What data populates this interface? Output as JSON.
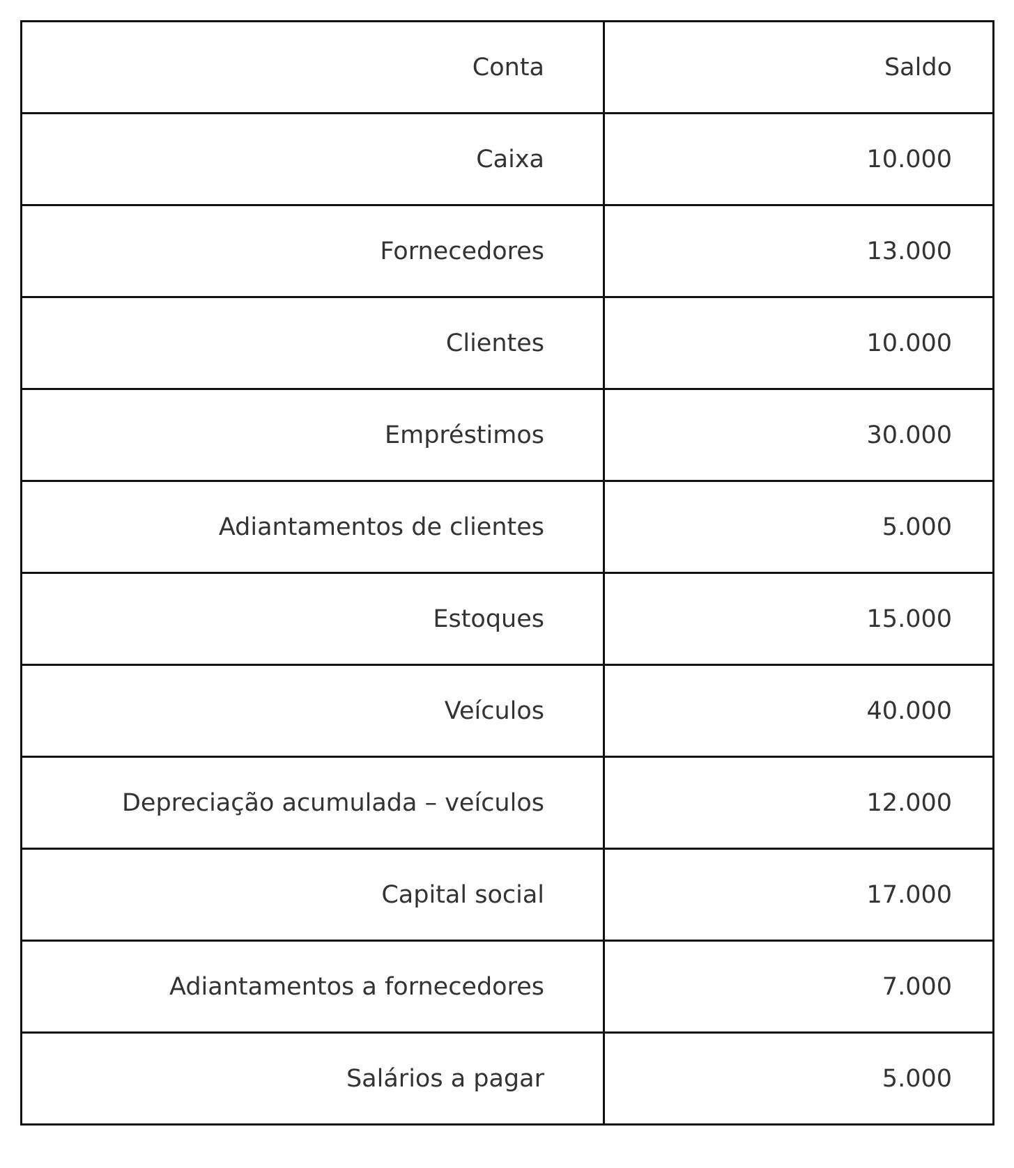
{
  "table": {
    "headers": [
      "Conta",
      "Saldo"
    ],
    "rows": [
      [
        "Caixa",
        "10.000"
      ],
      [
        "Fornecedores",
        "13.000"
      ],
      [
        "Clientes",
        "10.000"
      ],
      [
        "Empréstimos",
        "30.000"
      ],
      [
        "Adiantamentos de clientes",
        "5.000"
      ],
      [
        "Estoques",
        "15.000"
      ],
      [
        "Veículos",
        "40.000"
      ],
      [
        "Depreciação acumulada – veículos",
        "12.000"
      ],
      [
        "Capital social",
        "17.000"
      ],
      [
        "Adiantamentos a fornecedores",
        "7.000"
      ],
      [
        "Salários a pagar",
        "5.000"
      ]
    ]
  }
}
